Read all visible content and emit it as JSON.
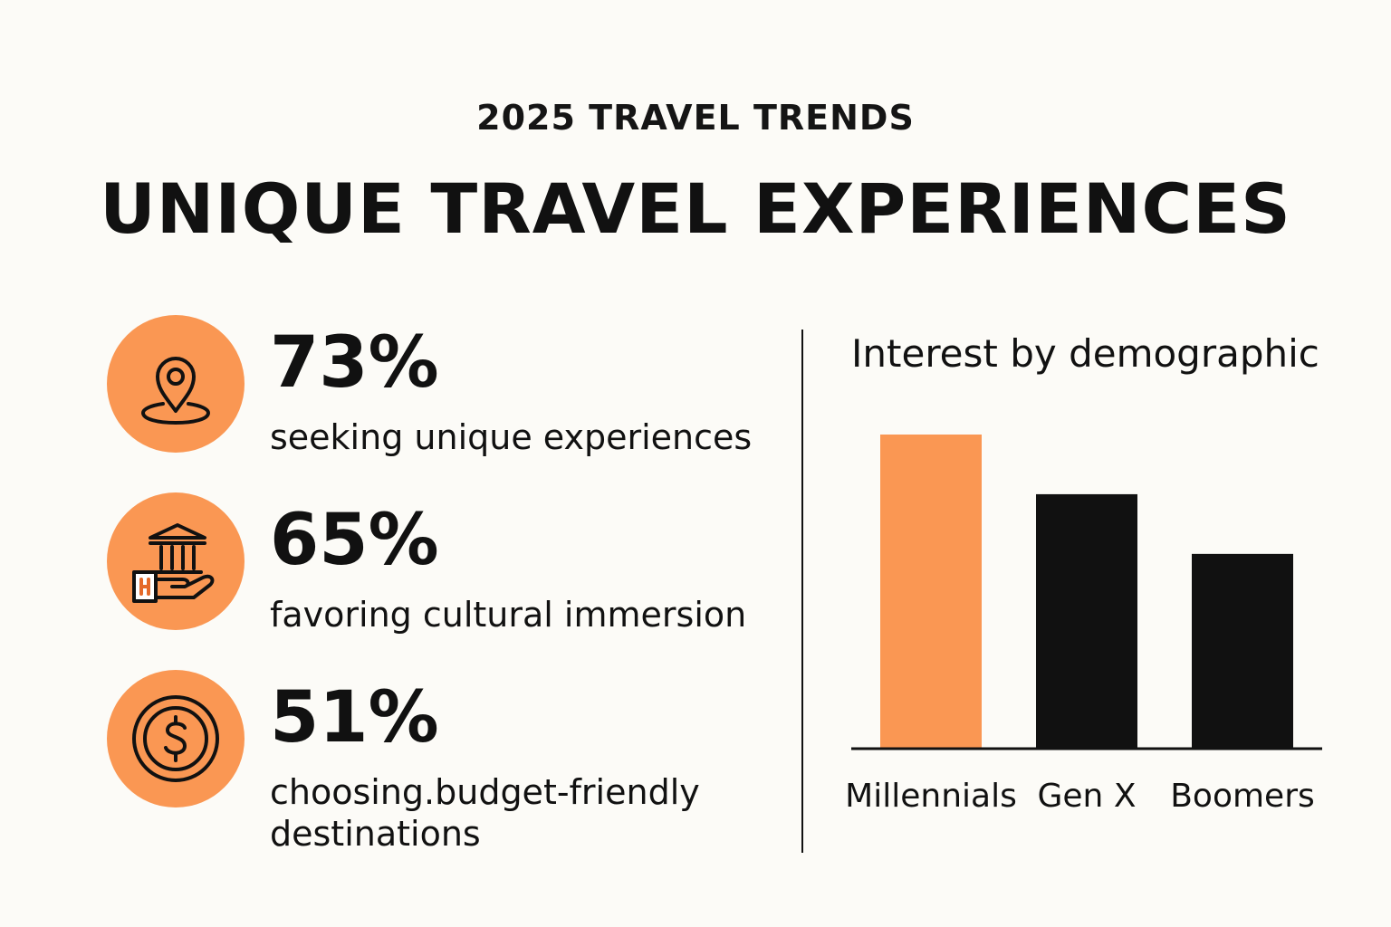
{
  "header": {
    "kicker": "2025 TRAVEL TRENDS",
    "title": "UNIQUE TRAVEL EXPERIENCES"
  },
  "stats": [
    {
      "value": "73%",
      "caption": "seeking unique experiences",
      "icon": "location-pin-icon"
    },
    {
      "value": "65%",
      "caption": "favoring cultural immersion",
      "icon": "museum-hand-icon"
    },
    {
      "value": "51%",
      "caption": "choosing.budget-friendly destinations",
      "icon": "dollar-coin-icon"
    }
  ],
  "colors": {
    "accent": "#fa9753",
    "dark": "#111111",
    "background": "#fcfbf7"
  },
  "chart_data": {
    "type": "bar",
    "title": "Interest by demographic",
    "categories": [
      "Millennials",
      "Gen X",
      "Boomers"
    ],
    "values": [
      100,
      81,
      62
    ],
    "bar_colors": [
      "#fa9753",
      "#111111",
      "#111111"
    ],
    "ylim": [
      0,
      100
    ],
    "xlabel": "",
    "ylabel": "",
    "grid": false
  }
}
